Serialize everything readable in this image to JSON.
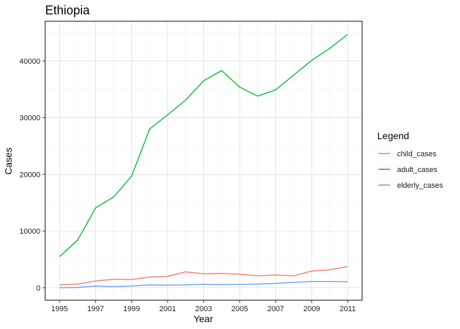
{
  "chart_data": {
    "type": "line",
    "title": "Ethiopia",
    "xlabel": "Year",
    "ylabel": "Cases",
    "x": [
      1995,
      1996,
      1997,
      1998,
      1999,
      2000,
      2001,
      2002,
      2003,
      2004,
      2005,
      2006,
      2007,
      2008,
      2009,
      2010,
      2011
    ],
    "xticks": [
      1995,
      1997,
      1999,
      2001,
      2003,
      2005,
      2007,
      2009,
      2011
    ],
    "yticks": [
      0,
      10000,
      20000,
      30000,
      40000
    ],
    "xlim": [
      1994.2,
      2011.8
    ],
    "ylim": [
      -2200,
      47000
    ],
    "grid": true,
    "legend": {
      "title": "Legend",
      "position": "right"
    },
    "series": [
      {
        "name": "child_cases",
        "color": "#F8766D",
        "values": [
          500,
          650,
          1200,
          1500,
          1450,
          1900,
          2000,
          2800,
          2450,
          2500,
          2400,
          2100,
          2250,
          2100,
          2950,
          3150,
          3750
        ]
      },
      {
        "name": "adult_cases",
        "color": "#00BA38",
        "values": [
          5500,
          8400,
          14100,
          16000,
          19700,
          28000,
          30500,
          33100,
          36500,
          38300,
          35400,
          33800,
          34900,
          37500,
          40100,
          42200,
          44700
        ]
      },
      {
        "name": "elderly_cases",
        "color": "#619CFF",
        "values": [
          0,
          50,
          300,
          200,
          300,
          500,
          450,
          500,
          600,
          550,
          600,
          650,
          750,
          950,
          1100,
          1100,
          1050
        ]
      }
    ]
  }
}
